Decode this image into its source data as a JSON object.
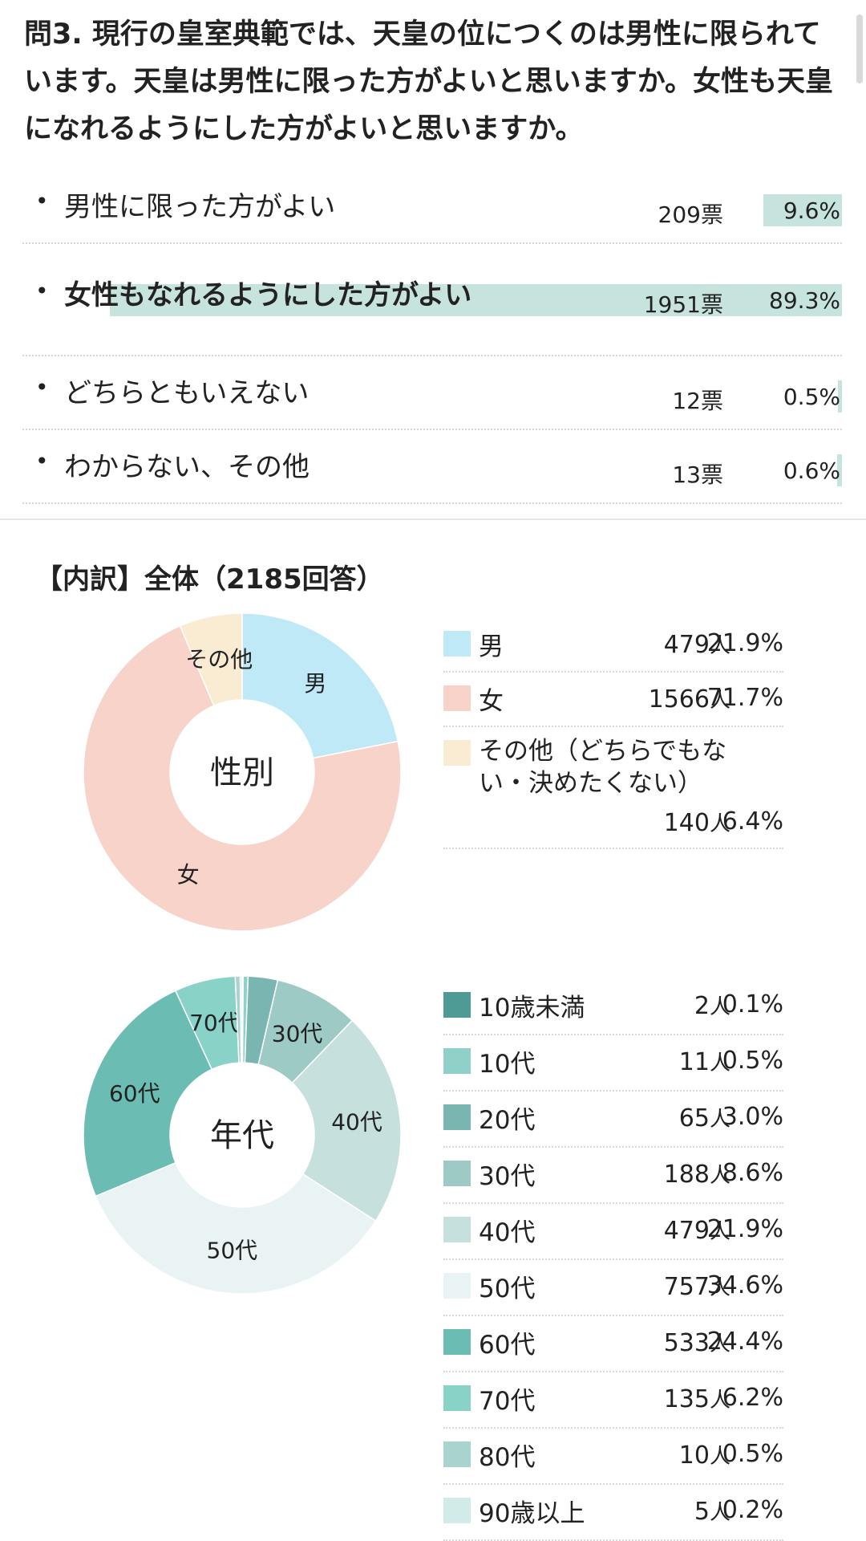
{
  "question": "問3. 現行の皇室典範では、天皇の位につくのは男性に限られています。天皇は男性に限った方がよいと思いますか。女性も天皇になれるようにした方がよいと思いますか。",
  "vote_unit": "票",
  "options": [
    {
      "label": "男性に限った方がよい",
      "votes": "209",
      "pct": "9.6%",
      "value": 9.6,
      "selected": false
    },
    {
      "label": "女性もなれるようにした方がよい",
      "votes": "1951",
      "pct": "89.3%",
      "value": 89.3,
      "selected": true
    },
    {
      "label": "どちらともいえない",
      "votes": "12",
      "pct": "0.5%",
      "value": 0.5,
      "selected": false
    },
    {
      "label": "わからない、その他",
      "votes": "13",
      "pct": "0.6%",
      "value": 0.6,
      "selected": false
    }
  ],
  "breakdown_title": "【内訳】全体（2185回答）",
  "person_unit": "人",
  "chart_data": [
    {
      "type": "pie",
      "title": "性別",
      "categories": [
        "男",
        "女",
        "その他（どちらでもない・決めたくない）"
      ],
      "slice_labels": [
        "男",
        "女",
        "その他"
      ],
      "counts": [
        479,
        1566,
        140
      ],
      "values": [
        21.9,
        71.7,
        6.4
      ],
      "pct_labels": [
        "21.9%",
        "71.7%",
        "6.4%"
      ],
      "colors": [
        "#bfe9f7",
        "#f8d3ca",
        "#f9ecd3"
      ]
    },
    {
      "type": "pie",
      "title": "年代",
      "categories": [
        "10歳未満",
        "10代",
        "20代",
        "30代",
        "40代",
        "50代",
        "60代",
        "70代",
        "80代",
        "90歳以上"
      ],
      "slice_labels": [
        "",
        "",
        "",
        "30代",
        "40代",
        "50代",
        "60代",
        "70代",
        "",
        ""
      ],
      "counts": [
        2,
        11,
        65,
        188,
        479,
        757,
        533,
        135,
        10,
        5
      ],
      "values": [
        0.1,
        0.5,
        3.0,
        8.6,
        21.9,
        34.6,
        24.4,
        6.2,
        0.5,
        0.2
      ],
      "pct_labels": [
        "0.1%",
        "0.5%",
        "3.0%",
        "8.6%",
        "21.9%",
        "34.6%",
        "24.4%",
        "6.2%",
        "0.5%",
        "0.2%"
      ],
      "colors": [
        "#4e9a94",
        "#8fd1c9",
        "#7ab5b1",
        "#9ecac6",
        "#c6e1dd",
        "#e9f3f3",
        "#6bbdb4",
        "#88d2c8",
        "#a9d3cf",
        "#d2eae8"
      ]
    }
  ]
}
